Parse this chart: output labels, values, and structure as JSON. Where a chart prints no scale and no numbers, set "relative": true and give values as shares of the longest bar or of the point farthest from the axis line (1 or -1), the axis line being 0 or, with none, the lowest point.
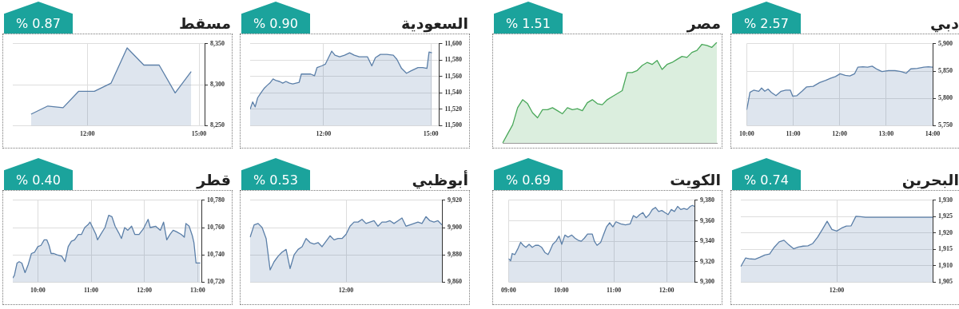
{
  "chart_data": [
    {
      "type": "area",
      "title": "مسقط",
      "subtitle": "% 0.87",
      "grid": true,
      "x": [
        10.49,
        10.94,
        11.35,
        11.77,
        12.19,
        12.64,
        13.07,
        13.52,
        13.93,
        14.36,
        14.79
      ],
      "series": [
        {
          "color": "#5b7fa8",
          "values": [
            8264,
            8274,
            8272,
            8292,
            8292,
            8302,
            8345,
            8324,
            8324,
            8290,
            8316
          ]
        }
      ],
      "xlim": [
        10.0,
        15.15
      ],
      "xticks": [
        {
          "value": 12,
          "label": "12:00"
        },
        {
          "value": 15,
          "label": "15:00"
        }
      ],
      "ylim": [
        8250,
        8350
      ],
      "yticks": [
        {
          "value": 8250,
          "label": "8,250"
        },
        {
          "value": 8300,
          "label": "8,300"
        },
        {
          "value": 8350,
          "label": "8,350"
        }
      ]
    },
    {
      "type": "area",
      "title": "السعودية",
      "subtitle": "% 0.90",
      "grid": true,
      "x": [
        9.95,
        10.02,
        10.09,
        10.16,
        10.25,
        10.35,
        10.42,
        10.5,
        10.59,
        10.68,
        10.77,
        10.86,
        10.95,
        11.05,
        11.14,
        11.23,
        11.32,
        11.38,
        11.5,
        11.64,
        11.75,
        11.82,
        11.95,
        12.05,
        12.14,
        12.23,
        12.32,
        12.45,
        12.59,
        12.73,
        12.86,
        13.0,
        13.23,
        13.35,
        13.45,
        13.59,
        13.77,
        13.95,
        14.05,
        14.18,
        14.32,
        14.45,
        14.64,
        14.77,
        14.89,
        14.95,
        15.03
      ],
      "series": [
        {
          "color": "#5b7fa8",
          "values": [
            11520,
            11529,
            11523,
            11534,
            11540,
            11546,
            11549,
            11552,
            11557,
            11555,
            11554,
            11552,
            11554,
            11552,
            11551,
            11552,
            11553,
            11563,
            11563,
            11563,
            11561,
            11571,
            11573,
            11575,
            11583,
            11591,
            11586,
            11584,
            11586,
            11589,
            11586,
            11584,
            11584,
            11573,
            11583,
            11587,
            11587,
            11586,
            11581,
            11570,
            11564,
            11567,
            11571,
            11571,
            11570,
            11590,
            11589
          ]
        }
      ],
      "xlim": [
        9.95,
        15.23
      ],
      "xticks": [
        {
          "value": 12,
          "label": "12:00"
        },
        {
          "value": 15,
          "label": "15:00"
        }
      ],
      "ylim": [
        11500,
        11600
      ],
      "yticks": [
        {
          "value": 11500,
          "label": "11,500"
        },
        {
          "value": 11520,
          "label": "11,520"
        },
        {
          "value": 11540,
          "label": "11,540"
        },
        {
          "value": 11560,
          "label": "11,560"
        },
        {
          "value": 11580,
          "label": "11,580"
        },
        {
          "value": 11600,
          "label": "11,600"
        }
      ]
    },
    {
      "type": "area",
      "title": "مصر",
      "subtitle": "% 1.51",
      "relative": true,
      "tick_labels": false,
      "categories": [
        null,
        null,
        null,
        null,
        null,
        null,
        null,
        null,
        null,
        null,
        null,
        null,
        null,
        null,
        null,
        null,
        null,
        null,
        null,
        null,
        null,
        null,
        null,
        null,
        null,
        null,
        null,
        null,
        null,
        null,
        null,
        null,
        null,
        null,
        null,
        null,
        null,
        null,
        null,
        null,
        null,
        null,
        null,
        null
      ],
      "series": [
        {
          "color": "#4aa85a",
          "values": [
            0,
            0.09,
            0.18,
            0.35,
            0.43,
            0.39,
            0.3,
            0.25,
            0.33,
            0.33,
            0.35,
            0.32,
            0.29,
            0.35,
            0.33,
            0.34,
            0.32,
            0.4,
            0.43,
            0.39,
            0.38,
            0.43,
            0.46,
            0.49,
            0.52,
            0.7,
            0.7,
            0.72,
            0.77,
            0.8,
            0.78,
            0.82,
            0.73,
            0.78,
            0.8,
            0.83,
            0.86,
            0.85,
            0.9,
            0.92,
            0.98,
            0.97,
            0.95,
            1
          ]
        }
      ]
    },
    {
      "type": "area",
      "title": "دبي",
      "subtitle": "% 2.57",
      "grid": true,
      "x": [
        10.0,
        10.03,
        10.07,
        10.15,
        10.26,
        10.32,
        10.39,
        10.46,
        10.53,
        10.63,
        10.74,
        10.84,
        10.94,
        10.99,
        11.08,
        11.19,
        11.29,
        11.43,
        11.57,
        11.7,
        11.81,
        11.91,
        12.01,
        12.12,
        12.22,
        12.32,
        12.39,
        12.5,
        12.6,
        12.7,
        12.81,
        12.91,
        13.05,
        13.19,
        13.32,
        13.43,
        13.53,
        13.67,
        13.81,
        13.91,
        14.0
      ],
      "series": [
        {
          "color": "#5b7fa8",
          "values": [
            5779,
            5792,
            5811,
            5815,
            5813,
            5819,
            5813,
            5817,
            5811,
            5805,
            5813,
            5815,
            5815,
            5804,
            5805,
            5813,
            5821,
            5822,
            5829,
            5833,
            5837,
            5840,
            5845,
            5842,
            5841,
            5845,
            5857,
            5858,
            5857,
            5859,
            5853,
            5849,
            5851,
            5851,
            5849,
            5846,
            5854,
            5855,
            5857,
            5858,
            5857
          ]
        }
      ],
      "xlim": [
        10.0,
        14.0
      ],
      "xticks": [
        {
          "value": 10,
          "label": "10:00"
        },
        {
          "value": 11,
          "label": "11:00"
        },
        {
          "value": 12,
          "label": "12:00"
        },
        {
          "value": 13,
          "label": "13:00"
        },
        {
          "value": 14,
          "label": "14:00"
        }
      ],
      "ylim": [
        5750,
        5900
      ],
      "yticks": [
        {
          "value": 5750,
          "label": "5,750"
        },
        {
          "value": 5800,
          "label": "5,800"
        },
        {
          "value": 5850,
          "label": "5,850"
        },
        {
          "value": 5900,
          "label": "5,900"
        }
      ]
    },
    {
      "type": "area",
      "title": "قطر",
      "subtitle": "% 0.40",
      "grid": true,
      "x": [
        9.53,
        9.56,
        9.61,
        9.65,
        9.7,
        9.76,
        9.82,
        9.88,
        9.94,
        10.0,
        10.06,
        10.12,
        10.17,
        10.21,
        10.25,
        10.3,
        10.36,
        10.45,
        10.51,
        10.57,
        10.63,
        10.69,
        10.76,
        10.82,
        10.88,
        10.94,
        10.98,
        11.03,
        11.09,
        11.12,
        11.18,
        11.26,
        11.33,
        11.39,
        11.45,
        11.52,
        11.57,
        11.63,
        11.69,
        11.76,
        11.82,
        11.9,
        11.98,
        12.07,
        12.11,
        12.21,
        12.3,
        12.36,
        12.42,
        12.48,
        12.54,
        12.6,
        12.69,
        12.75,
        12.78,
        12.84,
        12.9,
        12.93,
        12.97,
        13.05
      ],
      "series": [
        {
          "color": "#5b7fa8",
          "values": [
            10723,
            10725,
            10734,
            10735,
            10734,
            10727,
            10733,
            10741,
            10742,
            10746,
            10747,
            10751,
            10751,
            10747,
            10741,
            10741,
            10740,
            10739,
            10735,
            10746,
            10750,
            10751,
            10755,
            10755,
            10760,
            10762,
            10764,
            10760,
            10755,
            10751,
            10755,
            10760,
            10769,
            10768,
            10761,
            10756,
            10752,
            10760,
            10758,
            10761,
            10755,
            10755,
            10759,
            10766,
            10760,
            10761,
            10758,
            10764,
            10751,
            10755,
            10758,
            10757,
            10755,
            10753,
            10763,
            10761,
            10754,
            10749,
            10734,
            10734
          ]
        }
      ],
      "xlim": [
        9.53,
        13.07
      ],
      "xticks": [
        {
          "value": 10,
          "label": "10:00"
        },
        {
          "value": 11,
          "label": "11:00"
        },
        {
          "value": 12,
          "label": "12:00"
        },
        {
          "value": 13,
          "label": "13:00"
        }
      ],
      "ylim": [
        10720,
        10780
      ],
      "yticks": [
        {
          "value": 10720,
          "label": "10,720"
        },
        {
          "value": 10740,
          "label": "10,740"
        },
        {
          "value": 10760,
          "label": "10,760"
        },
        {
          "value": 10780,
          "label": "10,780"
        }
      ]
    },
    {
      "type": "area",
      "title": "أبوظبي",
      "subtitle": "% 0.53",
      "grid": true,
      "categories": [
        null,
        null,
        null,
        null,
        null,
        null,
        null,
        null,
        null,
        null,
        null,
        null,
        null,
        null,
        null,
        null,
        null,
        null,
        null,
        null,
        null,
        null,
        null,
        null,
        "12:00",
        null,
        null,
        null,
        null,
        null,
        null,
        null,
        null,
        null,
        null,
        null,
        null,
        null,
        null,
        null,
        null,
        null,
        null,
        null,
        null,
        null,
        null,
        null,
        null
      ],
      "series": [
        {
          "color": "#5b7fa8",
          "values": [
            9893,
            9902,
            9903,
            9900,
            9892,
            9869,
            9875,
            9879,
            9882,
            9884,
            9870,
            9880,
            9884,
            9886,
            9892,
            9889,
            9888,
            9889,
            9886,
            9890,
            9894,
            9891,
            9892,
            9892,
            9895,
            9901,
            9904,
            9904,
            9906,
            9903,
            9904,
            9905,
            9901,
            9904,
            9904,
            9905,
            9903,
            9905,
            9907,
            9901,
            9902,
            9903,
            9904,
            9903,
            9908,
            9905,
            9904,
            9905,
            9902
          ]
        }
      ],
      "ylim": [
        9860,
        9920
      ],
      "yticks": [
        {
          "value": 9860,
          "label": "9,860"
        },
        {
          "value": 9880,
          "label": "9,880"
        },
        {
          "value": 9900,
          "label": "9,900"
        },
        {
          "value": 9920,
          "label": "9,920"
        }
      ]
    },
    {
      "type": "area",
      "title": "الكويت",
      "subtitle": "% 0.69",
      "grid": true,
      "x": [
        9.0,
        9.04,
        9.07,
        9.12,
        9.18,
        9.23,
        9.28,
        9.33,
        9.39,
        9.45,
        9.51,
        9.57,
        9.63,
        9.69,
        9.75,
        9.78,
        9.84,
        9.9,
        9.96,
        10.01,
        10.07,
        10.13,
        10.2,
        10.26,
        10.32,
        10.38,
        10.44,
        10.5,
        10.59,
        10.63,
        10.68,
        10.75,
        10.8,
        10.86,
        10.92,
        10.98,
        11.04,
        11.13,
        11.22,
        11.31,
        11.37,
        11.43,
        11.49,
        11.55,
        11.61,
        11.67,
        11.73,
        11.79,
        11.85,
        11.91,
        11.97,
        12.03,
        12.09,
        12.15,
        12.21,
        12.27,
        12.33,
        12.39,
        12.45,
        12.49,
        12.53
      ],
      "series": [
        {
          "color": "#5b7fa8",
          "values": [
            9323,
            9321,
            9328,
            9327,
            9333,
            9339,
            9336,
            9334,
            9337,
            9334,
            9336,
            9336,
            9334,
            9329,
            9327,
            9330,
            9337,
            9340,
            9345,
            9337,
            9346,
            9344,
            9346,
            9343,
            9341,
            9340,
            9343,
            9347,
            9347,
            9340,
            9336,
            9339,
            9346,
            9354,
            9358,
            9354,
            9359,
            9357,
            9356,
            9357,
            9365,
            9363,
            9366,
            9368,
            9363,
            9366,
            9371,
            9373,
            9369,
            9370,
            9368,
            9366,
            9371,
            9369,
            9374,
            9371,
            9372,
            9371,
            9374,
            9375,
            9374
          ]
        }
      ],
      "xlim": [
        9.0,
        12.53
      ],
      "xticks": [
        {
          "value": 9,
          "label": "09:00"
        },
        {
          "value": 10,
          "label": "10:00"
        },
        {
          "value": 11,
          "label": "11:00"
        },
        {
          "value": 12,
          "label": "12:00"
        }
      ],
      "ylim": [
        9300,
        9380
      ],
      "yticks": [
        {
          "value": 9300,
          "label": "9,300"
        },
        {
          "value": 9320,
          "label": "9,320"
        },
        {
          "value": 9340,
          "label": "9,340"
        },
        {
          "value": 9360,
          "label": "9,360"
        },
        {
          "value": 9380,
          "label": "9,380"
        }
      ]
    },
    {
      "type": "area",
      "title": "البحرين",
      "subtitle": "% 0.74",
      "grid": true,
      "categories": [
        null,
        null,
        null,
        null,
        null,
        null,
        null,
        null,
        null,
        null,
        null,
        null,
        null,
        null,
        null,
        null,
        null,
        null,
        null,
        null,
        "12:00",
        null,
        null,
        null,
        null,
        null,
        null,
        null,
        null,
        null,
        null,
        null,
        null,
        null,
        null,
        null,
        null,
        null,
        null,
        null,
        null
      ],
      "series": [
        {
          "color": "#5b7fa8",
          "values": [
            1909.8,
            1912.4,
            1912.1,
            1912.0,
            1912.6,
            1913.3,
            1913.6,
            1915.7,
            1917.3,
            1917.8,
            1916.4,
            1915.2,
            1915.7,
            1916.0,
            1916.1,
            1916.8,
            1918.7,
            1921.1,
            1923.6,
            1921.1,
            1920.6,
            1921.5,
            1922.1,
            1922.2,
            1925.1,
            1925.0,
            1924.8,
            1924.8,
            1924.8,
            1924.8,
            1924.8,
            1924.8,
            1924.8,
            1924.8,
            1924.8,
            1924.8,
            1924.8,
            1924.8,
            1924.8,
            1924.8,
            1924.8
          ]
        }
      ],
      "ylim": [
        1905,
        1930
      ],
      "yticks": [
        {
          "value": 1905,
          "label": "1,905"
        },
        {
          "value": 1910,
          "label": "1,910"
        },
        {
          "value": 1915,
          "label": "1,915"
        },
        {
          "value": 1920,
          "label": "1,920"
        },
        {
          "value": 1925,
          "label": "1,925"
        },
        {
          "value": 1930,
          "label": "1,930"
        }
      ]
    }
  ]
}
